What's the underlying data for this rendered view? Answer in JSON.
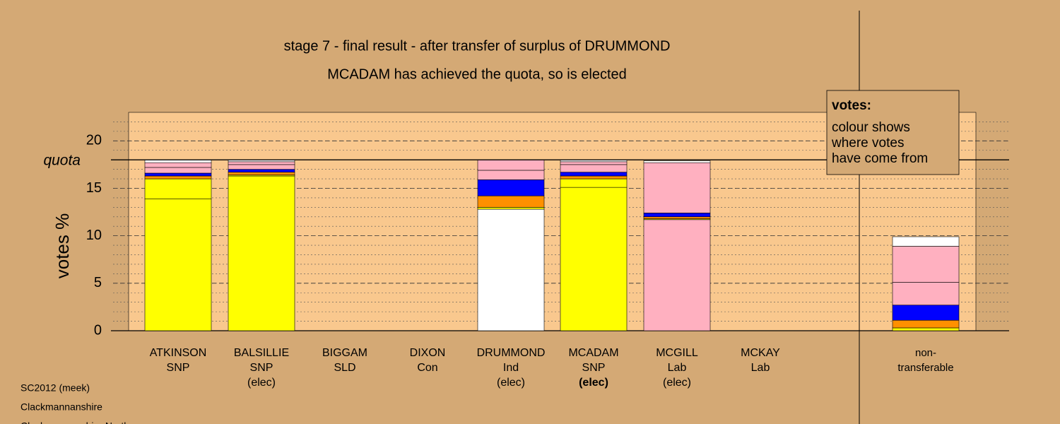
{
  "chart_data": {
    "type": "stacked-bar",
    "title": "stage 7 - final result - after transfer of surplus of DRUMMOND",
    "subtitle": "MCADAM has achieved the quota, so is elected",
    "y_label": "votes %",
    "quota_label": "quota",
    "quota": 18,
    "ylim": [
      0,
      23
    ],
    "yticks": [
      0,
      5,
      10,
      15,
      20
    ],
    "minor_grid_step": 1,
    "highlight": 5,
    "labels": [
      [
        "ATKINSON",
        "SNP"
      ],
      [
        "BALSILLIE",
        "SNP",
        "(elec)"
      ],
      [
        "BIGGAM",
        "SLD"
      ],
      [
        "DIXON",
        "Con"
      ],
      [
        "DRUMMOND",
        "Ind",
        "(elec)"
      ],
      [
        "MCADAM",
        "SNP",
        "(elec)"
      ],
      [
        "MCGILL",
        "Lab",
        "(elec)"
      ],
      [
        "MCKAY",
        "Lab"
      ],
      [
        "non-",
        "transferable"
      ]
    ],
    "stacks": [
      [
        {
          "value": 13.9,
          "color": "#ffff00"
        },
        {
          "value": 2.1,
          "color": "#ffff00"
        },
        {
          "value": 0.3,
          "color": "#ff9000"
        },
        {
          "value": 0.3,
          "color": "#0000ff"
        },
        {
          "value": 0.6,
          "color": "#ffb0c0"
        },
        {
          "value": 0.5,
          "color": "#ffb0c0"
        },
        {
          "value": 0.3,
          "color": "#ffffff"
        }
      ],
      [
        {
          "value": 16.3,
          "color": "#ffff00"
        },
        {
          "value": 0.1,
          "color": "#ffff00"
        },
        {
          "value": 0.3,
          "color": "#ff9000"
        },
        {
          "value": 0.3,
          "color": "#0000ff"
        },
        {
          "value": 0.5,
          "color": "#ffb0c0"
        },
        {
          "value": 0.3,
          "color": "#ffb0c0"
        },
        {
          "value": 0.2,
          "color": "#ffffff"
        }
      ],
      [
        {
          "value": 0,
          "color": "#ffffff"
        }
      ],
      [
        {
          "value": 0,
          "color": "#ffffff"
        }
      ],
      [
        {
          "value": 12.8,
          "color": "#ffffff"
        },
        {
          "value": 0.2,
          "color": "#ffff00"
        },
        {
          "value": 1.2,
          "color": "#ff9000"
        },
        {
          "value": 1.7,
          "color": "#0000ff"
        },
        {
          "value": 1.0,
          "color": "#ffb0c0"
        },
        {
          "value": 1.1,
          "color": "#ffb0c0"
        }
      ],
      [
        {
          "value": 15.1,
          "color": "#ffff00"
        },
        {
          "value": 0.9,
          "color": "#ffff00"
        },
        {
          "value": 0.3,
          "color": "#ff9000"
        },
        {
          "value": 0.4,
          "color": "#0000ff"
        },
        {
          "value": 0.8,
          "color": "#ffb0c0"
        },
        {
          "value": 0.3,
          "color": "#ffb0c0"
        },
        {
          "value": 0.2,
          "color": "#ffffff"
        }
      ],
      [
        {
          "value": 11.7,
          "color": "#ffb0c0"
        },
        {
          "value": 0.1,
          "color": "#ffff00"
        },
        {
          "value": 0.2,
          "color": "#ff9000"
        },
        {
          "value": 0.4,
          "color": "#0000ff"
        },
        {
          "value": 5.3,
          "color": "#ffb0c0"
        },
        {
          "value": 0.2,
          "color": "#ffffff"
        }
      ],
      [
        {
          "value": 0,
          "color": "#ffffff"
        }
      ],
      [
        {
          "value": 0.3,
          "color": "#ffff00"
        },
        {
          "value": 0.8,
          "color": "#ff9000"
        },
        {
          "value": 1.6,
          "color": "#0000ff"
        },
        {
          "value": 2.4,
          "color": "#ffb0c0"
        },
        {
          "value": 3.8,
          "color": "#ffb0c0"
        },
        {
          "value": 1.0,
          "color": "#ffffff"
        }
      ]
    ],
    "box_title": "votes:",
    "box_lines": [
      "colour shows",
      "where votes",
      "have come from"
    ],
    "footer": [
      "SC2012 (meek)",
      "Clackmannanshire",
      "Clackmannanshire North"
    ]
  }
}
